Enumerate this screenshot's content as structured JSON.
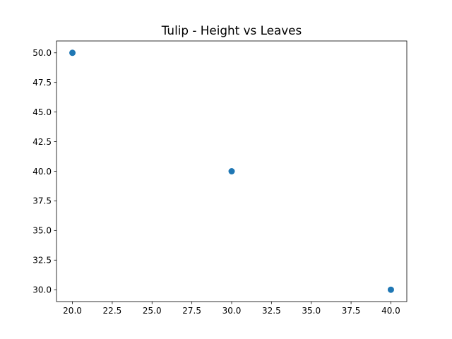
{
  "chart_data": {
    "type": "scatter",
    "title": "Tulip - Height vs Leaves",
    "xlabel": "",
    "ylabel": "",
    "xlim": [
      19,
      41
    ],
    "ylim": [
      29,
      51
    ],
    "xticks": [
      "20.0",
      "22.5",
      "25.0",
      "27.5",
      "30.0",
      "32.5",
      "35.0",
      "37.5",
      "40.0"
    ],
    "yticks": [
      "30.0",
      "32.5",
      "35.0",
      "37.5",
      "40.0",
      "42.5",
      "45.0",
      "47.5",
      "50.0"
    ],
    "grid": false,
    "marker_color": "#1f77b4",
    "series": [
      {
        "x": [
          20,
          30,
          40
        ],
        "y": [
          50,
          40,
          30
        ]
      }
    ]
  }
}
